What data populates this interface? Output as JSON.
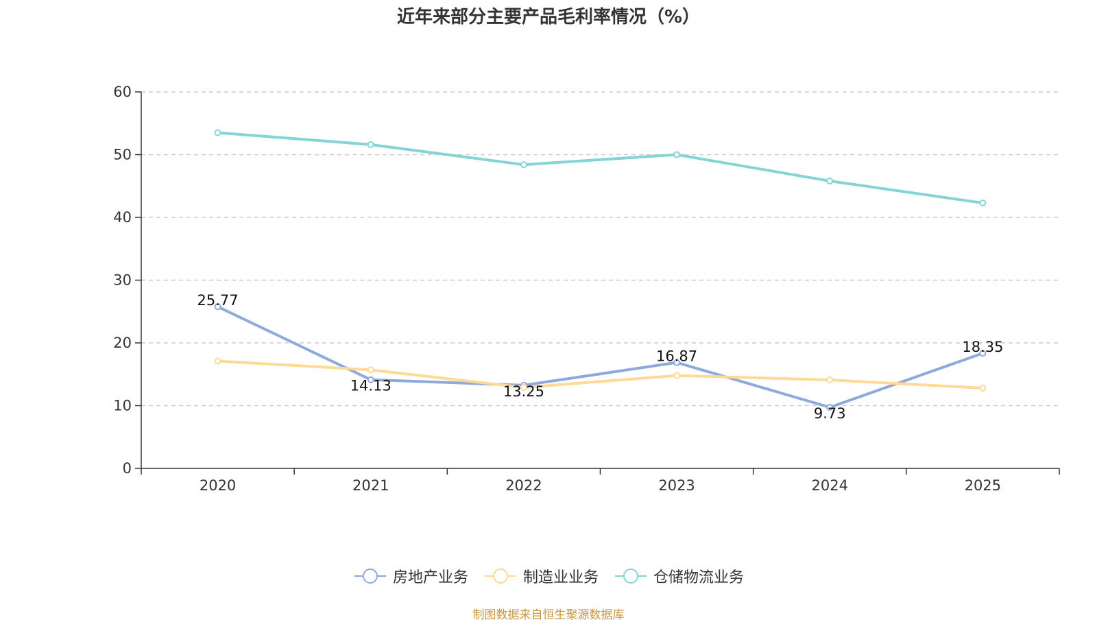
{
  "chart_data": {
    "type": "line",
    "title": "近年来部分主要产品毛利率情况（%）",
    "xlabel": "",
    "ylabel": "",
    "categories": [
      "2020",
      "2021",
      "2022",
      "2023",
      "2024",
      "2025"
    ],
    "ylim": [
      0,
      60
    ],
    "yticks": [
      0,
      10,
      20,
      30,
      40,
      50,
      60
    ],
    "grid": true,
    "legend_position": "bottom",
    "series": [
      {
        "name": "房地产业务",
        "values": [
          25.77,
          14.13,
          13.25,
          16.87,
          9.73,
          18.35
        ],
        "labels": [
          "25.77",
          "14.13",
          "13.25",
          "16.87",
          "9.73",
          "18.35"
        ],
        "label_positions": [
          "above",
          "below",
          "below",
          "above",
          "below",
          "above"
        ],
        "color": "#8eaadb",
        "show_labels": true
      },
      {
        "name": "制造业业务",
        "values": [
          17.1,
          15.7,
          12.9,
          14.8,
          14.1,
          12.8
        ],
        "color": "#ffd996",
        "show_labels": false
      },
      {
        "name": "仓储物流业务",
        "values": [
          53.5,
          51.6,
          48.4,
          50.0,
          45.8,
          42.3
        ],
        "color": "#84d3d6",
        "show_labels": false
      }
    ]
  },
  "source": "制图数据来自恒生聚源数据库"
}
